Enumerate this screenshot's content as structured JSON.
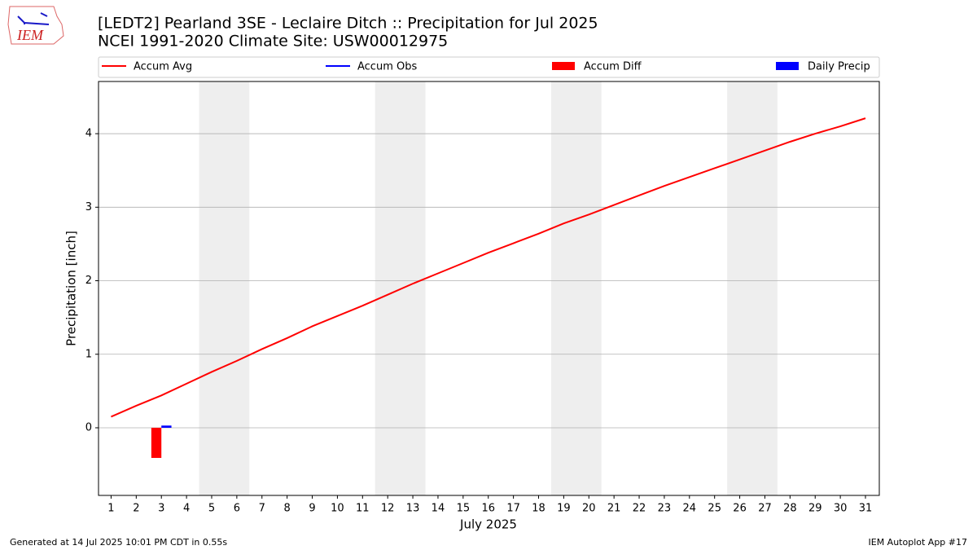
{
  "logo_text": "IEM",
  "footer": {
    "left": "Generated at 14 Jul 2025 10:01 PM CDT in 0.55s",
    "right": "IEM Autoplot App #17"
  },
  "chart_data": {
    "type": "combo",
    "title": "[LEDT2] Pearland 3SE - Leclaire Ditch :: Precipitation for Jul 2025",
    "subtitle": "NCEI 1991-2020 Climate Site: USW00012975",
    "xlabel": "July 2025",
    "ylabel": "Precipitation [inch]",
    "xlim": [
      0.5,
      31.55
    ],
    "ylim": [
      -0.92,
      4.71
    ],
    "xticks": [
      1,
      2,
      3,
      4,
      5,
      6,
      7,
      8,
      9,
      10,
      11,
      12,
      13,
      14,
      15,
      16,
      17,
      18,
      19,
      20,
      21,
      22,
      23,
      24,
      25,
      26,
      27,
      28,
      29,
      30,
      31
    ],
    "yticks": [
      0,
      1,
      2,
      3,
      4
    ],
    "grid": true,
    "legend": "top",
    "weekend_spans": [
      [
        4.5,
        6.5
      ],
      [
        11.5,
        13.5
      ],
      [
        18.5,
        20.5
      ],
      [
        25.5,
        27.5
      ]
    ],
    "weekend_color": "#eeeeee",
    "series": [
      {
        "name": "Accum Avg",
        "kind": "line",
        "color": "#ff0000",
        "x": [
          1,
          2,
          3,
          4,
          5,
          6,
          7,
          8,
          9,
          10,
          11,
          12,
          13,
          14,
          15,
          16,
          17,
          18,
          19,
          20,
          21,
          22,
          23,
          24,
          25,
          26,
          27,
          28,
          29,
          30,
          31
        ],
        "values": [
          0.15,
          0.3,
          0.44,
          0.6,
          0.76,
          0.91,
          1.07,
          1.22,
          1.38,
          1.52,
          1.66,
          1.81,
          1.96,
          2.1,
          2.24,
          2.38,
          2.51,
          2.64,
          2.78,
          2.9,
          3.03,
          3.16,
          3.29,
          3.41,
          3.53,
          3.65,
          3.77,
          3.89,
          4.0,
          4.1,
          4.21
        ]
      },
      {
        "name": "Accum Obs",
        "kind": "line",
        "color": "#0000ff",
        "x": [
          3
        ],
        "values": [
          0.03
        ]
      },
      {
        "name": "Accum Diff",
        "kind": "bar",
        "color": "#ff0000",
        "x": [
          3
        ],
        "values": [
          -0.41
        ]
      },
      {
        "name": "Daily Precip",
        "kind": "bar",
        "color": "#0000ff",
        "x": [
          3
        ],
        "values": [
          0.03
        ]
      }
    ]
  }
}
